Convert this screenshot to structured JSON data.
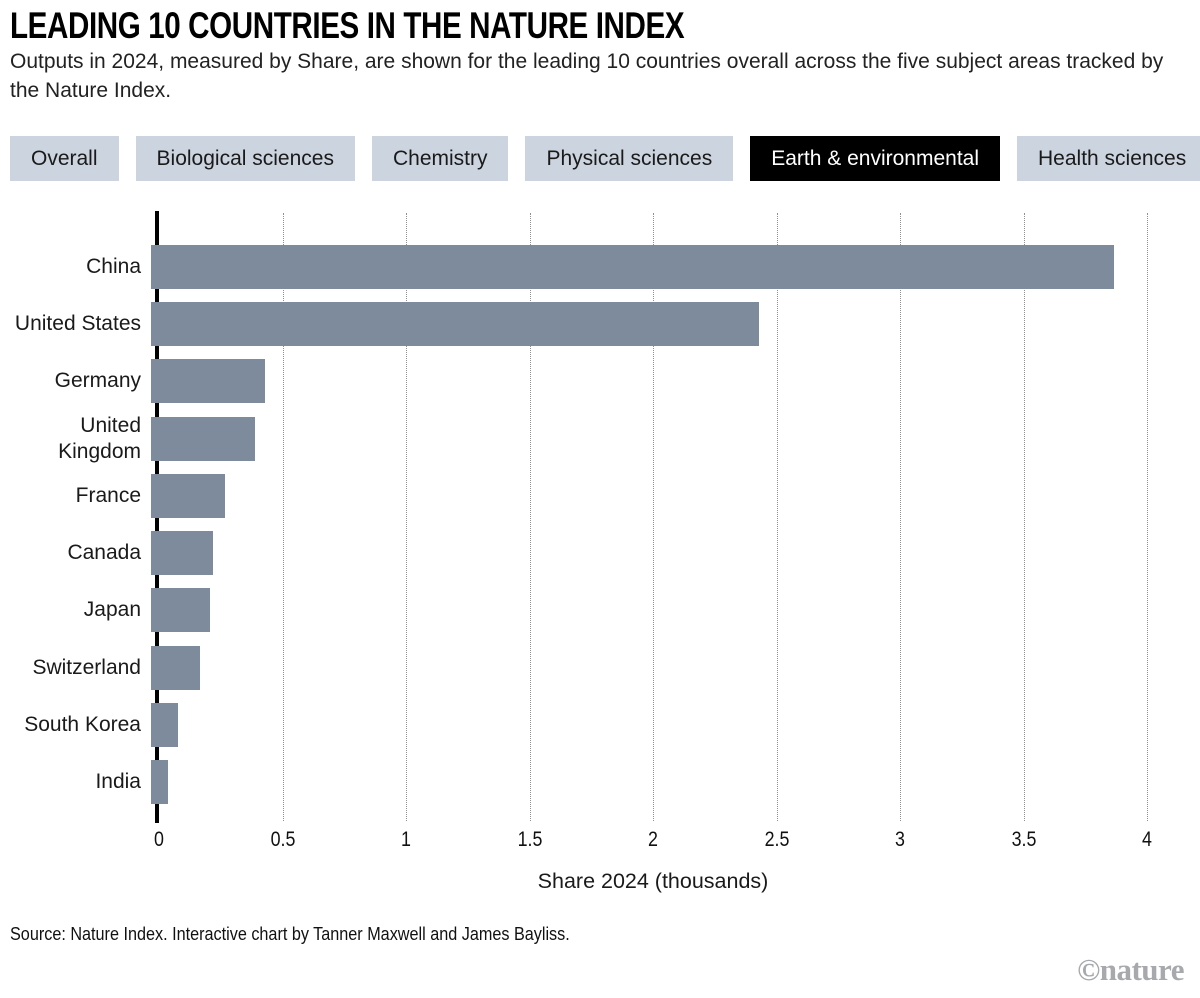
{
  "header": {
    "title": "LEADING 10 COUNTRIES IN THE NATURE INDEX",
    "subtitle": "Outputs in 2024, measured by Share, are shown for the leading 10 countries overall across the five subject areas tracked by the Nature Index."
  },
  "tabs": [
    {
      "label": "Overall",
      "selected": false
    },
    {
      "label": "Biological sciences",
      "selected": false
    },
    {
      "label": "Chemistry",
      "selected": false
    },
    {
      "label": "Physical sciences",
      "selected": false
    },
    {
      "label": "Earth & environmental",
      "selected": true
    },
    {
      "label": "Health sciences",
      "selected": false
    }
  ],
  "chart_data": {
    "type": "bar",
    "orientation": "horizontal",
    "title": "LEADING 10 COUNTRIES IN THE NATURE INDEX",
    "categories": [
      "China",
      "United States",
      "Germany",
      "United Kingdom",
      "France",
      "Canada",
      "Japan",
      "Switzerland",
      "South Korea",
      "India"
    ],
    "values": [
      3.9,
      2.46,
      0.46,
      0.42,
      0.3,
      0.25,
      0.24,
      0.2,
      0.11,
      0.07
    ],
    "xlabel": "Share 2024 (thousands)",
    "ylabel": "",
    "xlim": [
      0,
      4
    ],
    "xticks": [
      0,
      0.5,
      1,
      1.5,
      2,
      2.5,
      3,
      3.5,
      4
    ],
    "grid": "dotted-vertical",
    "legend": "none",
    "bar_color": "#7e8b9d",
    "axis_color": "#000000"
  },
  "footer": {
    "source": "Source: Nature Index. Interactive chart by Tanner Maxwell and James Bayliss.",
    "logo": "©nature"
  }
}
